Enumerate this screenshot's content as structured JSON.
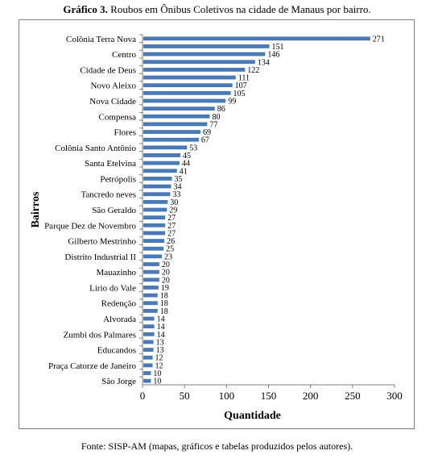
{
  "figure": {
    "caption_bold": "Gráfico 3.",
    "caption_rest": " Roubos em Ônibus Coletivos na cidade de Manaus por bairro.",
    "source": "Fonte: SISP-AM (mapas, gráficos e tabelas produzidos pelos autores)."
  },
  "chart_data": {
    "type": "bar",
    "orientation": "horizontal",
    "title": "",
    "xlabel": "Quantidade",
    "ylabel": "Bairros",
    "xlim": [
      0,
      300
    ],
    "xticks": [
      0,
      50,
      100,
      150,
      200,
      250,
      300
    ],
    "grid": false,
    "legend": "none",
    "bar_color": "#4a7ab5",
    "categories": [
      "Colônia Terra Nova",
      "",
      "Centro",
      "",
      "Cidade de Deus",
      "",
      "Novo Aleixo",
      "",
      "Nova Cidade",
      "",
      "Compensa",
      "",
      "Flores",
      "",
      "Colônia Santo Antônio",
      "",
      "Santa Etelvina",
      "",
      "Petrópolis",
      "",
      "Tancredo neves",
      "",
      "São Geraldo",
      "",
      "Parque Dez de Novembro",
      "",
      "Gilberto Mestrinho",
      "",
      "Distrito Industrial II",
      "",
      "Mauazinho",
      "",
      "Lírio do Vale",
      "",
      "Redenção",
      "",
      "Alvorada",
      "",
      "Zumbi dos Palmares",
      "",
      "Educandos",
      "",
      "Praça Catorze de Janeiro",
      "",
      "São Jorge"
    ],
    "values": [
      271,
      151,
      146,
      134,
      122,
      111,
      107,
      105,
      99,
      86,
      80,
      77,
      69,
      67,
      53,
      45,
      44,
      41,
      35,
      34,
      33,
      30,
      29,
      27,
      27,
      27,
      26,
      25,
      23,
      20,
      20,
      20,
      19,
      18,
      18,
      18,
      14,
      14,
      14,
      13,
      13,
      12,
      12,
      10,
      10
    ]
  }
}
